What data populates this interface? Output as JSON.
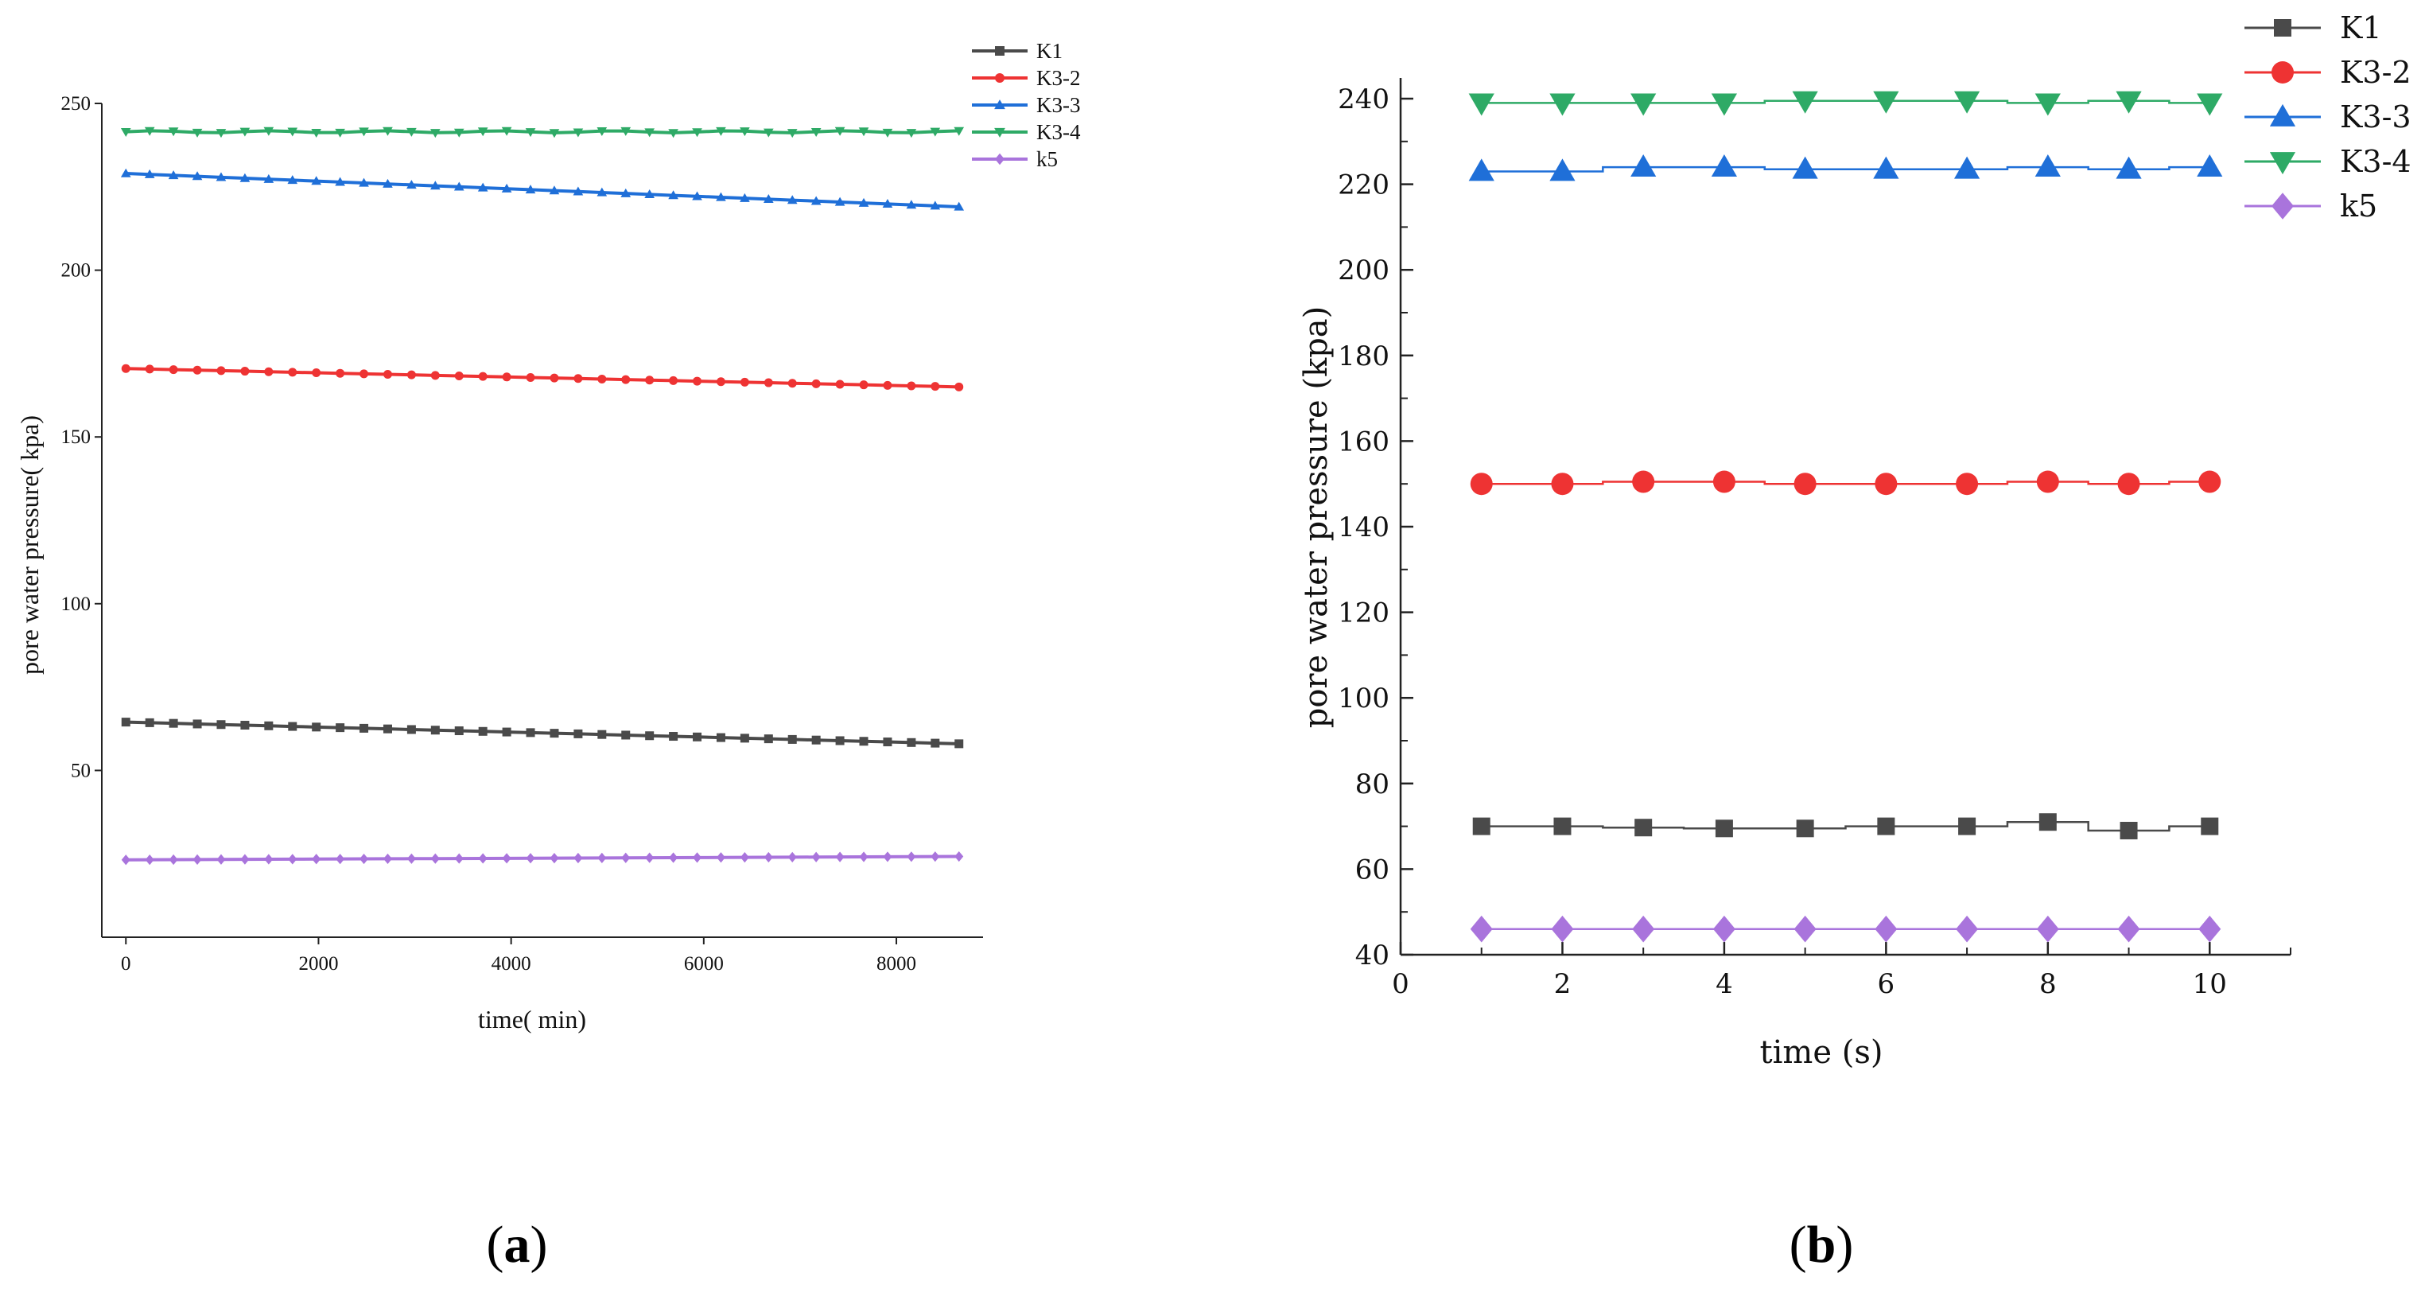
{
  "chart_data": [
    {
      "panel": "(a)",
      "panel_label": {
        "open": "(",
        "letter": "a",
        "close": ")"
      },
      "type": "line",
      "xlabel": "time( min)",
      "ylabel": "pore water pressure( kpa)",
      "xlim": [
        -250,
        8900
      ],
      "ylim": [
        0,
        250
      ],
      "xticks": [
        0,
        2000,
        4000,
        6000,
        8000
      ],
      "yticks": [
        50,
        100,
        150,
        200,
        250
      ],
      "x_start": 0,
      "x_end": 8650,
      "series": [
        {
          "name": "K1",
          "color": "#4a4a4a",
          "marker": "square",
          "start": 64.5,
          "end": 58
        },
        {
          "name": "K3-2",
          "color": "#ee3333",
          "marker": "circle",
          "start": 170.5,
          "end": 165
        },
        {
          "name": "K3-3",
          "color": "#1f6fd8",
          "marker": "triangle-up",
          "start": 229,
          "end": 219
        },
        {
          "name": "K3-4",
          "color": "#2eaa66",
          "marker": "triangle-down",
          "start": 241.5,
          "end": 241.5
        },
        {
          "name": "k5",
          "color": "#a974dc",
          "marker": "diamond",
          "start": 23.2,
          "end": 24.2
        }
      ]
    },
    {
      "panel": "(b)",
      "panel_label": {
        "open": "(",
        "letter": "b",
        "close": ")"
      },
      "type": "line",
      "xlabel": "time (s)",
      "ylabel": "pore water pressure (kpa)",
      "xlim": [
        0,
        11
      ],
      "ylim": [
        40,
        240
      ],
      "xticks": [
        0,
        2,
        4,
        6,
        8,
        10
      ],
      "yticks": [
        40,
        60,
        80,
        100,
        120,
        140,
        160,
        180,
        200,
        220,
        240
      ],
      "x": [
        1,
        2,
        3,
        4,
        5,
        6,
        7,
        8,
        9,
        10
      ],
      "series": [
        {
          "name": "K1",
          "color": "#4a4a4a",
          "marker": "square",
          "values": [
            70,
            70,
            69.7,
            69.5,
            69.5,
            70,
            70,
            71,
            69,
            70
          ]
        },
        {
          "name": "K3-2",
          "color": "#ee3333",
          "marker": "circle",
          "values": [
            150,
            150,
            150.5,
            150.5,
            150,
            150,
            150,
            150.5,
            150,
            150.5
          ]
        },
        {
          "name": "K3-3",
          "color": "#1f6fd8",
          "marker": "triangle-up",
          "values": [
            223,
            223,
            224,
            224,
            223.5,
            223.5,
            223.5,
            224,
            223.5,
            224
          ]
        },
        {
          "name": "K3-4",
          "color": "#2eaa66",
          "marker": "triangle-down",
          "values": [
            239,
            239,
            239,
            239,
            239.5,
            239.5,
            239.5,
            239,
            239.5,
            239
          ]
        },
        {
          "name": "k5",
          "color": "#a974dc",
          "marker": "diamond",
          "values": [
            46,
            46,
            46,
            46,
            46,
            46,
            46,
            46,
            46,
            46
          ]
        }
      ]
    }
  ]
}
